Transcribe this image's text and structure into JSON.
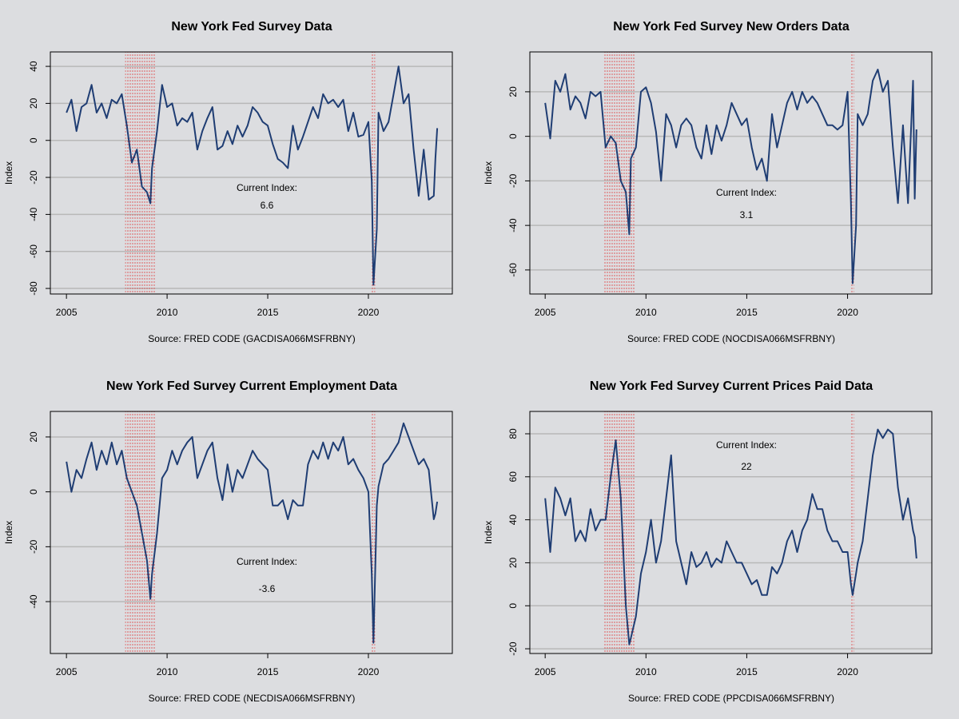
{
  "chart_data": [
    {
      "type": "line",
      "title": "New York Fed Survey Data",
      "y_label": "Index",
      "source": "Source: FRED CODE (GACDISA066MSFRBNY)",
      "annotation": {
        "label": "Current Index:",
        "value": 6.6
      },
      "color": "#1f3d73",
      "grid": true,
      "xlim": [
        2004.2,
        2024.17
      ],
      "xticks": [
        2005,
        2010,
        2015,
        2020
      ],
      "ylim": [
        -83,
        47.8
      ],
      "yticks": [
        -80,
        -60,
        -40,
        -20,
        0,
        20,
        40
      ],
      "recessions": [
        [
          2007.92,
          2009.42
        ],
        [
          2020.17,
          2020.33
        ]
      ],
      "x": [
        2005,
        2005.25,
        2005.5,
        2005.75,
        2006,
        2006.25,
        2006.5,
        2006.75,
        2007,
        2007.25,
        2007.5,
        2007.75,
        2008,
        2008.25,
        2008.5,
        2008.75,
        2009,
        2009.17,
        2009.25,
        2009.5,
        2009.75,
        2010,
        2010.25,
        2010.5,
        2010.75,
        2011,
        2011.25,
        2011.5,
        2011.75,
        2012,
        2012.25,
        2012.5,
        2012.75,
        2013,
        2013.25,
        2013.5,
        2013.75,
        2014,
        2014.25,
        2014.5,
        2014.75,
        2015,
        2015.25,
        2015.5,
        2015.75,
        2016,
        2016.25,
        2016.5,
        2016.75,
        2017,
        2017.25,
        2017.5,
        2017.75,
        2018,
        2018.25,
        2018.5,
        2018.75,
        2019,
        2019.25,
        2019.5,
        2019.75,
        2020,
        2020.17,
        2020.25,
        2020.42,
        2020.5,
        2020.75,
        2021,
        2021.25,
        2021.5,
        2021.75,
        2022,
        2022.25,
        2022.5,
        2022.75,
        2023,
        2023.25,
        2023.33,
        2023.42
      ],
      "values": [
        15,
        22,
        5,
        18,
        20,
        30,
        15,
        20,
        12,
        22,
        20,
        25,
        8,
        -12,
        -5,
        -25,
        -28,
        -34,
        -15,
        5,
        30,
        18,
        20,
        8,
        12,
        10,
        15,
        -5,
        5,
        12,
        18,
        -5,
        -3,
        5,
        -2,
        8,
        2,
        8,
        18,
        15,
        10,
        8,
        -2,
        -10,
        -12,
        -15,
        8,
        -5,
        2,
        10,
        18,
        12,
        25,
        20,
        22,
        18,
        22,
        5,
        15,
        2,
        3,
        10,
        -22,
        -78,
        -48,
        15,
        5,
        10,
        25,
        40,
        20,
        25,
        -5,
        -30,
        -5,
        -32,
        -30,
        -10,
        6.6
      ]
    },
    {
      "type": "line",
      "title": "New York Fed Survey New Orders Data",
      "y_label": "Index",
      "source": "Source: FRED CODE (NOCDISA066MSFRBNY)",
      "annotation": {
        "label": "Current Index:",
        "value": 3.1
      },
      "color": "#1f3d73",
      "grid": true,
      "xlim": [
        2004.24,
        2024.18
      ],
      "xticks": [
        2005,
        2010,
        2015,
        2020
      ],
      "ylim": [
        -70.8,
        37.9
      ],
      "yticks": [
        -60,
        -40,
        -20,
        0,
        20
      ],
      "recessions": [
        [
          2007.92,
          2009.42
        ],
        [
          2020.17,
          2020.33
        ]
      ],
      "x": [
        2005,
        2005.25,
        2005.5,
        2005.75,
        2006,
        2006.25,
        2006.5,
        2006.75,
        2007,
        2007.25,
        2007.5,
        2007.75,
        2008,
        2008.25,
        2008.5,
        2008.75,
        2009,
        2009.17,
        2009.25,
        2009.5,
        2009.75,
        2010,
        2010.25,
        2010.5,
        2010.75,
        2011,
        2011.25,
        2011.5,
        2011.75,
        2012,
        2012.25,
        2012.5,
        2012.75,
        2013,
        2013.25,
        2013.5,
        2013.75,
        2014,
        2014.25,
        2014.5,
        2014.75,
        2015,
        2015.25,
        2015.5,
        2015.75,
        2016,
        2016.25,
        2016.5,
        2016.75,
        2017,
        2017.25,
        2017.5,
        2017.75,
        2018,
        2018.25,
        2018.5,
        2018.75,
        2019,
        2019.25,
        2019.5,
        2019.75,
        2020,
        2020.17,
        2020.25,
        2020.42,
        2020.5,
        2020.75,
        2021,
        2021.25,
        2021.5,
        2021.75,
        2022,
        2022.25,
        2022.5,
        2022.75,
        2023,
        2023.25,
        2023.33,
        2023.42
      ],
      "values": [
        15,
        -1,
        25,
        20,
        28,
        12,
        18,
        15,
        8,
        20,
        18,
        20,
        -5,
        0,
        -3,
        -20,
        -25,
        -44,
        -10,
        -5,
        20,
        22,
        15,
        2,
        -20,
        10,
        5,
        -5,
        5,
        8,
        5,
        -5,
        -10,
        5,
        -8,
        5,
        -2,
        5,
        15,
        10,
        5,
        8,
        -5,
        -15,
        -10,
        -20,
        10,
        -5,
        5,
        15,
        20,
        12,
        20,
        15,
        18,
        15,
        10,
        5,
        5,
        3,
        5,
        20,
        -30,
        -66,
        -40,
        10,
        5,
        10,
        25,
        30,
        20,
        25,
        -5,
        -30,
        5,
        -30,
        25,
        -28,
        3.1
      ]
    },
    {
      "type": "line",
      "title": "New York Fed Survey Current Employment Data",
      "y_label": "Index",
      "source": "Source: FRED CODE (NECDISA066MSFRBNY)",
      "annotation": {
        "label": "Current Index:",
        "value": -3.6
      },
      "color": "#1f3d73",
      "grid": true,
      "xlim": [
        2004.2,
        2024.17
      ],
      "xticks": [
        2005,
        2010,
        2015,
        2020
      ],
      "ylim": [
        -58.9,
        29.3
      ],
      "yticks": [
        -40,
        -20,
        0,
        20
      ],
      "recessions": [
        [
          2007.92,
          2009.42
        ],
        [
          2020.17,
          2020.33
        ]
      ],
      "x": [
        2005,
        2005.25,
        2005.5,
        2005.75,
        2006,
        2006.25,
        2006.5,
        2006.75,
        2007,
        2007.25,
        2007.5,
        2007.75,
        2008,
        2008.25,
        2008.5,
        2008.75,
        2009,
        2009.17,
        2009.25,
        2009.5,
        2009.75,
        2010,
        2010.25,
        2010.5,
        2010.75,
        2011,
        2011.25,
        2011.5,
        2011.75,
        2012,
        2012.25,
        2012.5,
        2012.75,
        2013,
        2013.25,
        2013.5,
        2013.75,
        2014,
        2014.25,
        2014.5,
        2014.75,
        2015,
        2015.25,
        2015.5,
        2015.75,
        2016,
        2016.25,
        2016.5,
        2016.75,
        2017,
        2017.25,
        2017.5,
        2017.75,
        2018,
        2018.25,
        2018.5,
        2018.75,
        2019,
        2019.25,
        2019.5,
        2019.75,
        2020,
        2020.17,
        2020.25,
        2020.42,
        2020.5,
        2020.75,
        2021,
        2021.25,
        2021.5,
        2021.75,
        2022,
        2022.25,
        2022.5,
        2022.75,
        2023,
        2023.25,
        2023.33,
        2023.42
      ],
      "values": [
        11,
        0,
        8,
        5,
        12,
        18,
        8,
        15,
        10,
        18,
        10,
        15,
        5,
        0,
        -5,
        -15,
        -25,
        -39,
        -30,
        -15,
        5,
        8,
        15,
        10,
        15,
        18,
        20,
        5,
        10,
        15,
        18,
        5,
        -3,
        10,
        0,
        8,
        5,
        10,
        15,
        12,
        10,
        8,
        -5,
        -5,
        -3,
        -10,
        -3,
        -5,
        -5,
        10,
        15,
        12,
        18,
        12,
        18,
        15,
        20,
        10,
        12,
        8,
        5,
        0,
        -30,
        -55,
        -5,
        2,
        10,
        12,
        15,
        18,
        25,
        20,
        15,
        10,
        12,
        8,
        -10,
        -8,
        -3.6
      ]
    },
    {
      "type": "line",
      "title": "New York Fed Survey Current Prices Paid Data",
      "y_label": "Index",
      "source": "Source: FRED CODE (PPCDISA066MSFRBNY)",
      "annotation": {
        "label": "Current Index:",
        "value": 22
      },
      "color": "#1f3d73",
      "grid": true,
      "xlim": [
        2004.24,
        2024.18
      ],
      "xticks": [
        2005,
        2010,
        2015,
        2020
      ],
      "ylim": [
        -22.2,
        90.4
      ],
      "yticks": [
        -20,
        0,
        20,
        40,
        60,
        80
      ],
      "recessions": [
        [
          2007.92,
          2009.42
        ],
        [
          2020.17,
          2020.33
        ]
      ],
      "x": [
        2005,
        2005.25,
        2005.5,
        2005.75,
        2006,
        2006.25,
        2006.5,
        2006.75,
        2007,
        2007.25,
        2007.5,
        2007.75,
        2008,
        2008.25,
        2008.5,
        2008.75,
        2009,
        2009.17,
        2009.25,
        2009.5,
        2009.75,
        2010,
        2010.25,
        2010.5,
        2010.75,
        2011,
        2011.25,
        2011.5,
        2011.75,
        2012,
        2012.25,
        2012.5,
        2012.75,
        2013,
        2013.25,
        2013.5,
        2013.75,
        2014,
        2014.25,
        2014.5,
        2014.75,
        2015,
        2015.25,
        2015.5,
        2015.75,
        2016,
        2016.25,
        2016.5,
        2016.75,
        2017,
        2017.25,
        2017.5,
        2017.75,
        2018,
        2018.25,
        2018.5,
        2018.75,
        2019,
        2019.25,
        2019.5,
        2019.75,
        2020,
        2020.17,
        2020.25,
        2020.42,
        2020.5,
        2020.75,
        2021,
        2021.25,
        2021.5,
        2021.75,
        2022,
        2022.25,
        2022.5,
        2022.75,
        2023,
        2023.25,
        2023.33,
        2023.42
      ],
      "values": [
        50,
        25,
        55,
        50,
        42,
        50,
        30,
        35,
        30,
        45,
        35,
        40,
        40,
        60,
        77,
        50,
        0,
        -18,
        -15,
        -5,
        15,
        25,
        40,
        20,
        30,
        50,
        70,
        30,
        20,
        10,
        25,
        18,
        20,
        25,
        18,
        22,
        20,
        30,
        25,
        20,
        20,
        15,
        10,
        12,
        5,
        5,
        18,
        15,
        20,
        30,
        35,
        25,
        35,
        40,
        52,
        45,
        45,
        35,
        30,
        30,
        25,
        25,
        10,
        5,
        15,
        20,
        30,
        50,
        70,
        82,
        78,
        82,
        80,
        55,
        40,
        50,
        35,
        32,
        22
      ]
    }
  ]
}
